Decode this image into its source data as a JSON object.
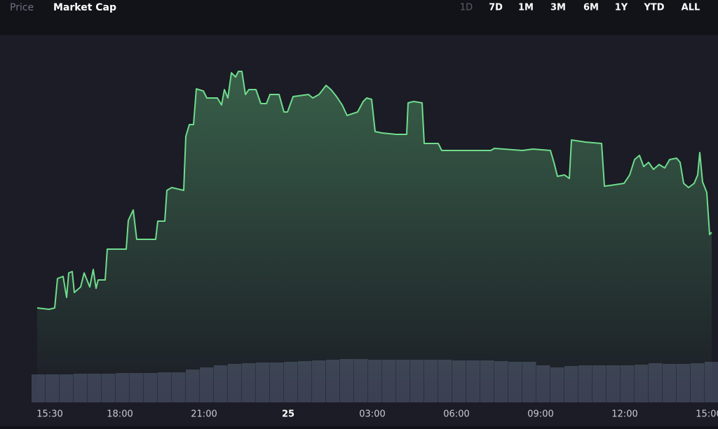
{
  "tabs": [
    "Price",
    "Market Cap"
  ],
  "ranges": [
    "1D",
    "7D",
    "1M",
    "3M",
    "6M",
    "1Y",
    "YTD",
    "ALL"
  ],
  "chart_data": {
    "type": "area",
    "color": "#6fdc8c",
    "x": [
      15.05,
      15.475,
      15.675,
      15.775,
      15.975,
      16.1,
      16.175,
      16.3,
      16.375,
      16.6,
      16.725,
      16.925,
      17.05,
      17.15,
      17.225,
      17.475,
      17.55,
      18.225,
      18.3,
      18.475,
      18.6,
      19.275,
      19.35,
      19.6,
      19.675,
      19.85,
      20.275,
      20.35,
      20.475,
      20.625,
      20.725,
      20.975,
      21.1,
      21.475,
      21.625,
      21.725,
      21.85,
      21.975,
      22.125,
      22.225,
      22.35,
      22.475,
      22.6,
      22.85,
      23.025,
      23.225,
      23.35,
      23.675,
      23.85,
      23.975,
      24.175,
      24.725,
      24.875,
      25.1,
      25.35,
      25.525,
      25.725,
      25.925,
      26.1,
      26.475,
      26.675,
      26.8,
      26.975,
      27.1,
      27.35,
      27.85,
      28.225,
      28.275,
      28.475,
      28.775,
      28.85,
      29.35,
      29.475,
      31.225,
      31.35,
      32.35,
      32.725,
      33.35,
      33.475,
      33.6,
      33.85,
      34.025,
      34.1,
      34.6,
      35.175,
      35.275,
      35.475,
      35.975,
      36.175,
      36.35,
      36.525,
      36.675,
      36.85,
      37.025,
      37.225,
      37.425,
      37.6,
      37.85,
      37.975,
      38.1,
      38.275,
      38.475,
      38.6,
      38.675,
      38.775,
      38.925,
      39.025,
      39.1
    ],
    "values": [
      135,
      133,
      135,
      177,
      180,
      150,
      185,
      187,
      157,
      165,
      185,
      165,
      190,
      163,
      175,
      175,
      219,
      219,
      260,
      275,
      233,
      233,
      259,
      259,
      303,
      307,
      303,
      380,
      397,
      397,
      448,
      445,
      435,
      435,
      425,
      447,
      435,
      471,
      465,
      473,
      473,
      440,
      447,
      447,
      427,
      427,
      440,
      440,
      415,
      415,
      437,
      440,
      435,
      440,
      453,
      447,
      437,
      425,
      410,
      415,
      430,
      435,
      433,
      387,
      385,
      383,
      383,
      428,
      430,
      428,
      370,
      370,
      360,
      360,
      363,
      360,
      362,
      360,
      343,
      323,
      325,
      320,
      375,
      372,
      370,
      309,
      310,
      313,
      325,
      347,
      353,
      337,
      343,
      333,
      340,
      335,
      347,
      349,
      343,
      313,
      307,
      313,
      325,
      357,
      315,
      300,
      240,
      243
    ],
    "xlim": [
      15.05,
      39.1
    ],
    "ylim": [
      0,
      525
    ],
    "xticks": [
      {
        "value": 15.5,
        "label": "15:30"
      },
      {
        "value": 18,
        "label": "18:00"
      },
      {
        "value": 21,
        "label": "21:00"
      },
      {
        "value": 24,
        "label": "25"
      },
      {
        "value": 27,
        "label": "03:00"
      },
      {
        "value": 30,
        "label": "06:00"
      },
      {
        "value": 33,
        "label": "09:00"
      },
      {
        "value": 36,
        "label": "12:00"
      },
      {
        "value": 39,
        "label": "15:00"
      }
    ],
    "volume": {
      "type": "bar",
      "color": "#3b3f52",
      "x": [
        15.1,
        15.6,
        16.1,
        16.6,
        17.1,
        17.6,
        18.1,
        18.6,
        19.1,
        19.6,
        20.1,
        20.6,
        21.1,
        21.6,
        22.1,
        22.6,
        23.1,
        23.6,
        24.1,
        24.6,
        25.1,
        25.6,
        26.1,
        26.6,
        27.1,
        27.6,
        28.1,
        28.6,
        29.1,
        29.6,
        30.1,
        30.6,
        31.1,
        31.6,
        32.1,
        32.6,
        33.1,
        33.6,
        34.1,
        34.6,
        35.1,
        35.6,
        36.1,
        36.6,
        37.1,
        37.6,
        38.1,
        38.6,
        39.1
      ],
      "values": [
        40,
        40,
        40,
        41,
        41,
        41,
        42,
        42,
        42,
        43,
        43,
        47,
        50,
        53,
        55,
        56,
        57,
        57,
        58,
        59,
        60,
        61,
        62,
        62,
        61,
        61,
        61,
        61,
        61,
        61,
        60,
        60,
        60,
        59,
        58,
        58,
        53,
        50,
        52,
        53,
        53,
        53,
        53,
        54,
        56,
        55,
        55,
        56,
        58
      ]
    }
  }
}
